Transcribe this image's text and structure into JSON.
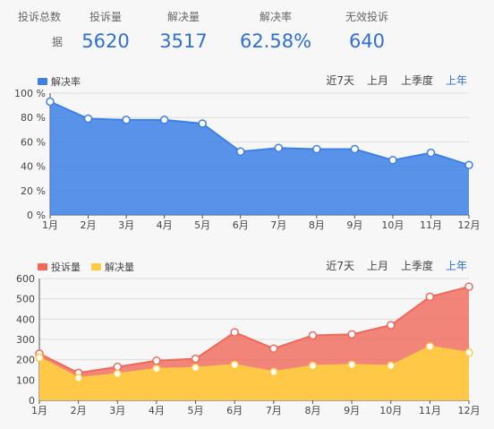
{
  "summary": {
    "title": "投诉总数据",
    "title_part1": "投诉总数",
    "title_part2": "据",
    "stats": [
      {
        "label": "投诉量",
        "value": "5620"
      },
      {
        "label": "解决量",
        "value": "3517"
      },
      {
        "label": "解决率",
        "value": "62.58%"
      },
      {
        "label": "无效投诉",
        "value": "640"
      }
    ]
  },
  "range_tabs": [
    {
      "label": "近7天",
      "active": false
    },
    {
      "label": "上月",
      "active": false
    },
    {
      "label": "上季度",
      "active": false
    },
    {
      "label": "上年",
      "active": true
    }
  ],
  "colors": {
    "resolution_rate": "#3d80e6",
    "complaints": "#f0685a",
    "resolved": "#ffcb45",
    "active_tab": "#2f6fd6"
  },
  "chart_data": [
    {
      "type": "area",
      "categories": [
        "1月",
        "2月",
        "3月",
        "4月",
        "5月",
        "6月",
        "7月",
        "8月",
        "9月",
        "10月",
        "11月",
        "12月"
      ],
      "series": [
        {
          "name": "解决率",
          "values": [
            93,
            79,
            78,
            78,
            75,
            52,
            55,
            54,
            54,
            45,
            51,
            41
          ]
        }
      ],
      "ylim": [
        0,
        100
      ],
      "yticks": [
        "0 %",
        "20 %",
        "40 %",
        "60 %",
        "80 %",
        "100 %"
      ],
      "grid": true,
      "legend": "top-left"
    },
    {
      "type": "area",
      "categories": [
        "1月",
        "2月",
        "3月",
        "4月",
        "5月",
        "6月",
        "7月",
        "8月",
        "9月",
        "10月",
        "11月",
        "12月"
      ],
      "series": [
        {
          "name": "投诉量",
          "values": [
            230,
            135,
            165,
            195,
            205,
            335,
            255,
            320,
            325,
            370,
            510,
            560
          ]
        },
        {
          "name": "解决量",
          "values": [
            210,
            110,
            130,
            155,
            160,
            175,
            140,
            170,
            175,
            170,
            265,
            235
          ]
        }
      ],
      "ylim": [
        0,
        600
      ],
      "yticks": [
        "0",
        "100",
        "200",
        "300",
        "400",
        "500",
        "600"
      ],
      "grid": true,
      "legend": "top-left"
    }
  ]
}
